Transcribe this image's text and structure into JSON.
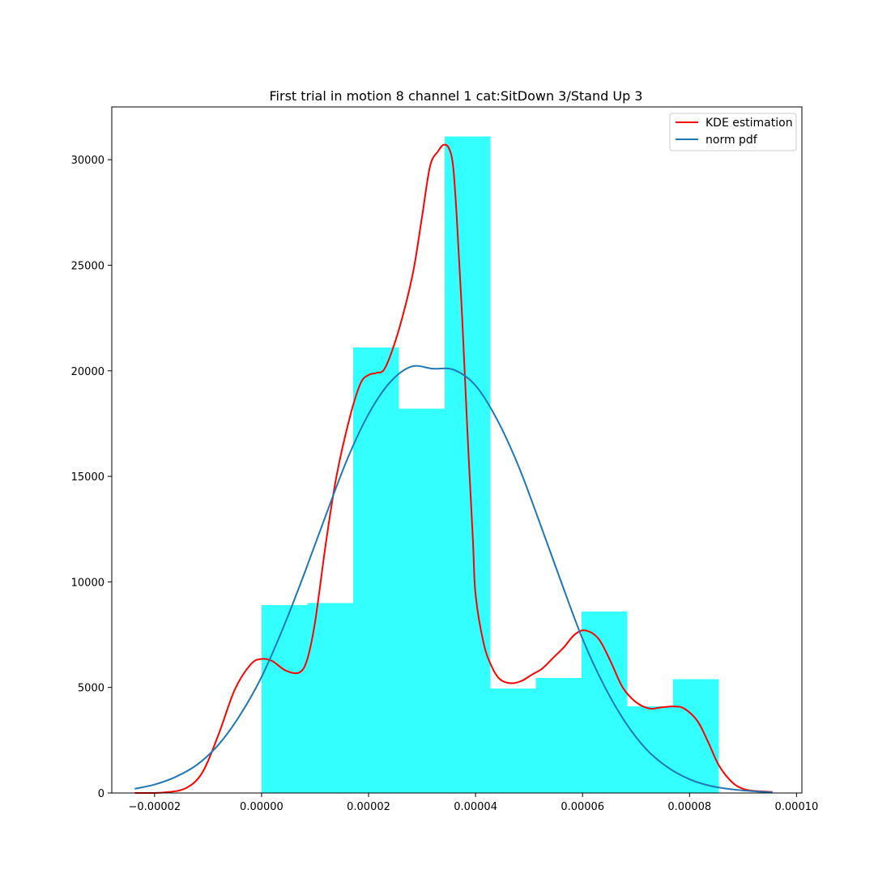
{
  "chart_data": {
    "type": "histogram",
    "title": "First trial in motion 8 channel 1 cat:SitDown 3/Stand Up 3",
    "xlabel": "",
    "ylabel": "",
    "xlim": [
      -2.8e-05,
      0.000101
    ],
    "ylim": [
      0,
      32500
    ],
    "x_ticks": [
      {
        "value": -2e-05,
        "label": "−0.00002"
      },
      {
        "value": 0.0,
        "label": "0.00000"
      },
      {
        "value": 2e-05,
        "label": "0.00002"
      },
      {
        "value": 4e-05,
        "label": "0.00004"
      },
      {
        "value": 6e-05,
        "label": "0.00006"
      },
      {
        "value": 8e-05,
        "label": "0.00008"
      },
      {
        "value": 0.0001,
        "label": "0.00010"
      }
    ],
    "y_ticks": [
      {
        "value": 0,
        "label": "0"
      },
      {
        "value": 5000,
        "label": "5000"
      },
      {
        "value": 10000,
        "label": "10000"
      },
      {
        "value": 15000,
        "label": "15000"
      },
      {
        "value": 20000,
        "label": "20000"
      },
      {
        "value": 25000,
        "label": "25000"
      },
      {
        "value": 30000,
        "label": "30000"
      }
    ],
    "histogram": {
      "color": "#33ffff",
      "bin_edges": [
        0.0,
        8.55e-06,
        1.71e-05,
        2.565e-05,
        3.42e-05,
        4.275e-05,
        5.13e-05,
        5.985e-05,
        6.84e-05,
        7.695e-05,
        8.55e-05
      ],
      "values": [
        8900,
        9000,
        21100,
        18200,
        31100,
        4950,
        5450,
        8600,
        4100,
        5400
      ]
    },
    "series": [
      {
        "name": "KDE estimation",
        "color": "#ff0000",
        "x": [
          -2.37e-05,
          -1.8e-05,
          -1.4e-05,
          -1.1e-05,
          -8e-06,
          -5e-06,
          -2e-06,
          0.0,
          2e-06,
          4.5e-06,
          7e-06,
          8.5e-06,
          1e-05,
          1.2e-05,
          1.4e-05,
          1.65e-05,
          1.85e-05,
          2e-05,
          2.15e-05,
          2.3e-05,
          2.5e-05,
          2.7e-05,
          2.85e-05,
          3e-05,
          3.15e-05,
          3.3e-05,
          3.4e-05,
          3.5e-05,
          3.58e-05,
          3.65e-05,
          3.75e-05,
          3.85e-05,
          3.95e-05,
          4e-05,
          4.15e-05,
          4.3e-05,
          4.45e-05,
          4.65e-05,
          4.85e-05,
          5.05e-05,
          5.25e-05,
          5.45e-05,
          5.65e-05,
          5.85e-05,
          6.05e-05,
          6.3e-05,
          6.53e-05,
          6.75e-05,
          7e-05,
          7.25e-05,
          7.45e-05,
          7.7e-05,
          7.9e-05,
          8.15e-05,
          8.35e-05,
          8.55e-05,
          8.8e-05,
          9e-05,
          9.2e-05,
          9.55e-05
        ],
        "y": [
          0,
          30,
          250,
          1000,
          2800,
          4900,
          6100,
          6350,
          6250,
          5800,
          5700,
          6300,
          8100,
          11800,
          15000,
          17800,
          19400,
          19800,
          19900,
          20100,
          21400,
          23200,
          24900,
          27300,
          29700,
          30400,
          30700,
          30550,
          29700,
          27200,
          22500,
          17000,
          12000,
          9400,
          7100,
          6000,
          5400,
          5200,
          5300,
          5600,
          5900,
          6400,
          6900,
          7500,
          7700,
          7300,
          6200,
          5000,
          4300,
          4000,
          4050,
          4100,
          4000,
          3400,
          2400,
          1300,
          500,
          200,
          100,
          50
        ]
      },
      {
        "name": "norm pdf",
        "color": "#1f77b4",
        "x": [
          -2.37e-05,
          -2e-05,
          -1.6e-05,
          -1.2e-05,
          -8e-06,
          -4e-06,
          0.0,
          4e-06,
          8e-06,
          1.2e-05,
          1.6e-05,
          2e-05,
          2.4e-05,
          2.8e-05,
          3.2e-05,
          3.59e-05,
          4e-05,
          4.4e-05,
          4.8e-05,
          5.2e-05,
          5.6e-05,
          6e-05,
          6.4e-05,
          6.8e-05,
          7.2e-05,
          7.6e-05,
          8e-05,
          8.4e-05,
          8.8e-05,
          9.2e-05,
          9.55e-05
        ],
        "y": [
          200,
          400,
          770,
          1350,
          2300,
          3700,
          5500,
          7800,
          10400,
          13150,
          15800,
          17950,
          19450,
          20200,
          20100,
          20050,
          19300,
          17700,
          15500,
          12800,
          10000,
          7300,
          5100,
          3350,
          2050,
          1200,
          650,
          330,
          170,
          80,
          30
        ]
      }
    ],
    "legend": {
      "position": "top-right",
      "entries": [
        "KDE estimation",
        "norm pdf"
      ]
    },
    "grid": false
  }
}
